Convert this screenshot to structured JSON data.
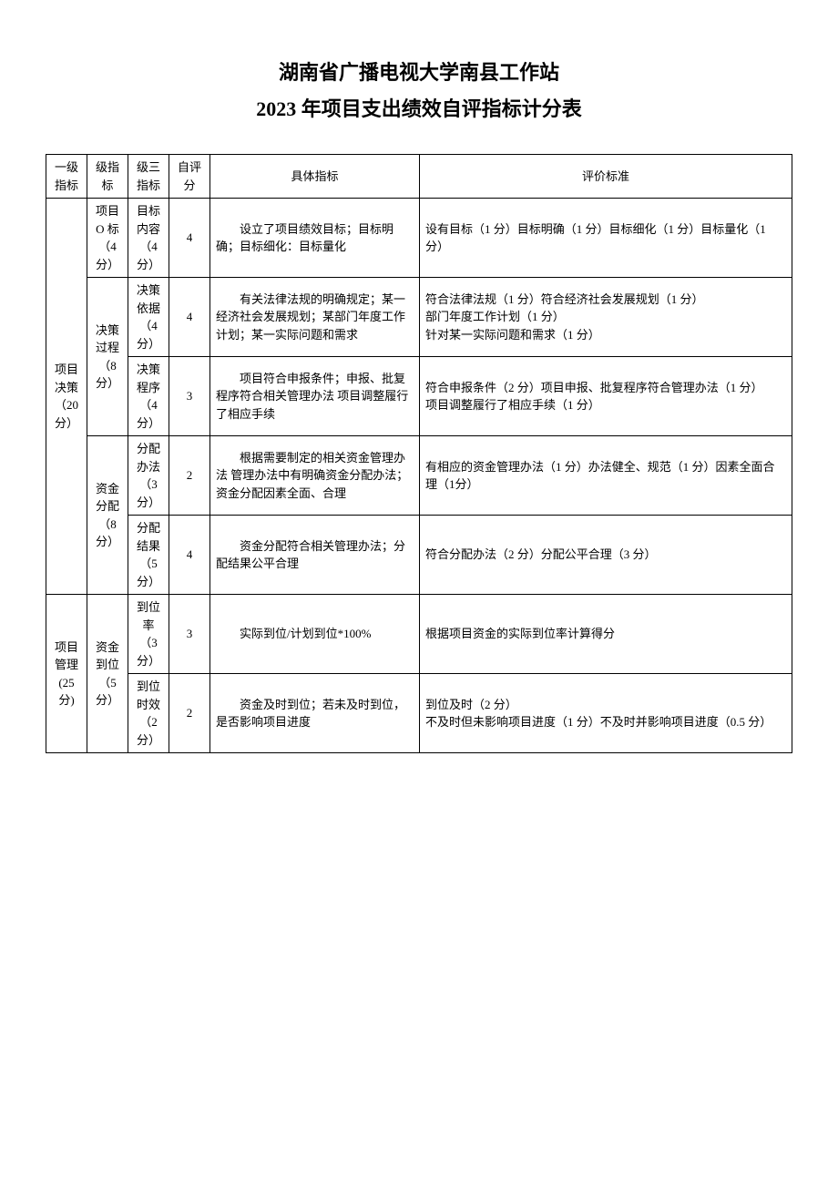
{
  "title_line1": "湖南省广播电视大学南县工作站",
  "title_line2": "2023 年项目支出绩效自评指标计分表",
  "headers": {
    "c1": "一级指标",
    "c2": "级指标",
    "c3": "级三指标",
    "c4": "自评分",
    "c5": "具体指标",
    "c6": "评价标准"
  },
  "l1": {
    "a": "项目决策（20 分）",
    "b": "项目管理(25 分)"
  },
  "l2": {
    "a1": "项目 O 标（4分）",
    "a2": "决策过程（8分）",
    "a3": "资金分配（8分）",
    "b1": "资金到位（5分）"
  },
  "l3": {
    "r1": "目标内容（4分）",
    "r2": "决策依据（4 分）",
    "r3": "决策程序（4分）",
    "r4": "分配办法（3分）",
    "r5": "分配结果（5分）",
    "r6": "到位率（3分）",
    "r7": "到位时效（2分）"
  },
  "score": {
    "r1": "4",
    "r2": "4",
    "r3": "3",
    "r4": "2",
    "r5": "4",
    "r6": "3",
    "r7": "2"
  },
  "detail": {
    "r1": "设立了项目绩效目标；目标明确；目标细化：目标量化",
    "r2": "有关法律法规的明确规定；某一经济社会发展规划；某部门年度工作计划；某一实际问题和需求",
    "r3": "项目符合申报条件；申报、批复程序符合相关管理办法  项目调整履行了相应手续",
    "r4": "根据需要制定的相关资金管理办法  管理办法中有明确资金分配办法；资金分配因素全面、合理",
    "r5": "资金分配符合相关管理办法；分配结果公平合理",
    "r6": "实际到位/计划到位*100%",
    "r7": "资金及时到位；若未及时到位，是否影响项目进度"
  },
  "std": {
    "r1": "设有目标（1 分）目标明确（1 分）目标细化（1 分）目标量化（1 分）",
    "r2": "符合法律法规（1 分）符合经济社会发展规划（1 分）\n部门年度工作计划（1 分）\n针对某一实际问题和需求（1 分）",
    "r3": "符合申报条件（2 分）项目申报、批复程序符合管理办法（1 分）\n项目调整履行了相应手续（1 分）",
    "r4": "有相应的资金管理办法（1 分）办法健全、规范（1 分）因素全面合理（1分）",
    "r5": "符合分配办法（2 分）分配公平合理（3 分）",
    "r6": "根据项目资金的实际到位率计算得分",
    "r7": "到位及时（2 分）\n不及时但未影响项目进度（1 分）不及时并影响项目进度（0.5 分）"
  }
}
